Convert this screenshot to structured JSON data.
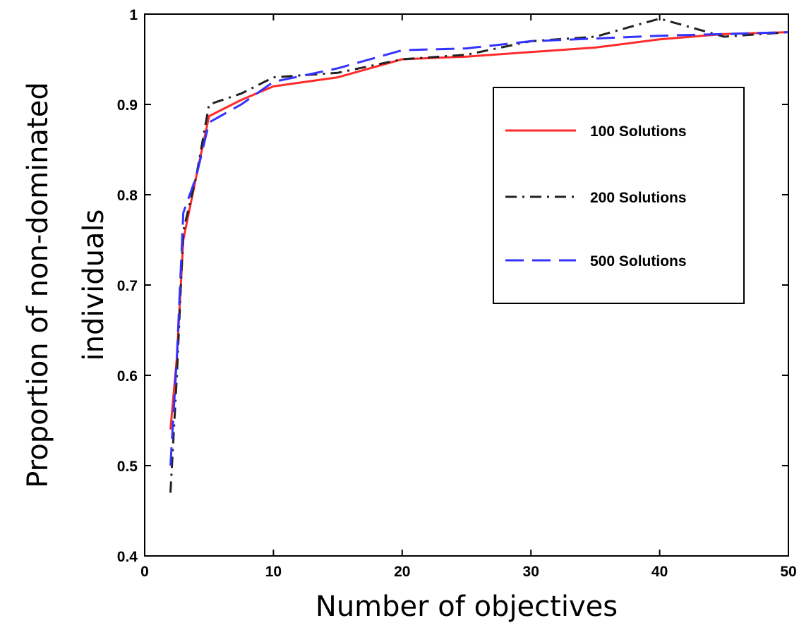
{
  "chart_data": {
    "type": "line",
    "title": "",
    "xlabel": "Number of objectives",
    "ylabel_lines": [
      "Proportion of non-dominated",
      "individuals"
    ],
    "xlim": [
      0,
      50
    ],
    "ylim": [
      0.4,
      1
    ],
    "xticks": [
      0,
      10,
      20,
      30,
      40,
      50
    ],
    "yticks": [
      0.4,
      0.5,
      0.6,
      0.7,
      0.8,
      0.9,
      1
    ],
    "ytick_labels": [
      "0.4",
      "0.5",
      "0.6",
      "0.7",
      "0.8",
      "0.9",
      "1"
    ],
    "grid": false,
    "legend_position": "top-right",
    "series": [
      {
        "name": "100 Solutions",
        "color": "#ff2a2a",
        "style": "solid",
        "x": [
          2,
          2.5,
          3,
          4,
          5,
          7.5,
          10,
          15,
          20,
          25,
          30,
          35,
          40,
          45,
          50
        ],
        "y": [
          0.54,
          0.62,
          0.75,
          0.82,
          0.887,
          0.905,
          0.92,
          0.93,
          0.95,
          0.953,
          0.958,
          0.963,
          0.972,
          0.978,
          0.98
        ]
      },
      {
        "name": "200 Solutions",
        "color": "#222222",
        "style": "dashdot",
        "x": [
          2,
          2.5,
          3,
          4,
          5,
          7.5,
          10,
          15,
          20,
          25,
          30,
          35,
          40,
          45,
          50
        ],
        "y": [
          0.47,
          0.6,
          0.76,
          0.82,
          0.9,
          0.912,
          0.93,
          0.935,
          0.95,
          0.955,
          0.97,
          0.975,
          0.995,
          0.975,
          0.98
        ]
      },
      {
        "name": "500 Solutions",
        "color": "#3333ff",
        "style": "dashed",
        "x": [
          2,
          2.5,
          3,
          4,
          5,
          7.5,
          10,
          15,
          20,
          25,
          30,
          35,
          40,
          45,
          50
        ],
        "y": [
          0.5,
          0.62,
          0.78,
          0.82,
          0.88,
          0.9,
          0.925,
          0.94,
          0.96,
          0.962,
          0.97,
          0.973,
          0.976,
          0.978,
          0.98
        ]
      }
    ]
  }
}
